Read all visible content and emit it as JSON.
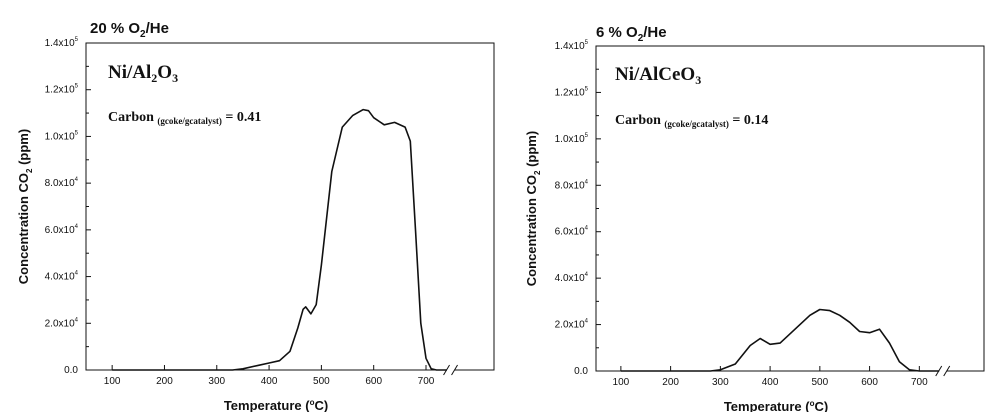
{
  "chart_data": [
    {
      "type": "line",
      "title": "20 % O2/He",
      "title_main": "20 % O",
      "title_sub": "2",
      "title_tail": "/He",
      "sample_main": "Ni/Al",
      "sample_sub1": "2",
      "sample_mid": "O",
      "sample_sub2": "3",
      "carbon_main": "Carbon",
      "carbon_unit": "(gcoke/gcatalyst)",
      "carbon_value": "= 0.41",
      "xlabel_main": "Temperature (",
      "xlabel_deg": "o",
      "xlabel_tail": "C)",
      "ylabel_main": "Concentration CO",
      "ylabel_sub": "2",
      "ylabel_tail": " (ppm)",
      "xlim": [
        50,
        830
      ],
      "ylim": [
        0,
        140000
      ],
      "x_ticks": [
        100,
        200,
        300,
        400,
        500,
        600,
        700
      ],
      "y_ticks": [
        {
          "v": 0,
          "text": "0.0",
          "exp": ""
        },
        {
          "v": 20000,
          "text": "2.0x10",
          "exp": "4"
        },
        {
          "v": 40000,
          "text": "4.0x10",
          "exp": "4"
        },
        {
          "v": 60000,
          "text": "6.0x10",
          "exp": "4"
        },
        {
          "v": 80000,
          "text": "8.0x10",
          "exp": "4"
        },
        {
          "v": 100000,
          "text": "1.0x10",
          "exp": "5"
        },
        {
          "v": 120000,
          "text": "1.2x10",
          "exp": "5"
        },
        {
          "v": 140000,
          "text": "1.4x10",
          "exp": "5"
        }
      ],
      "axis_break_x": 745,
      "x": [
        100,
        200,
        300,
        330,
        350,
        380,
        400,
        420,
        440,
        455,
        465,
        470,
        480,
        490,
        500,
        520,
        540,
        560,
        580,
        590,
        600,
        620,
        640,
        660,
        670,
        680,
        690,
        700,
        710,
        720,
        740
      ],
      "y": [
        0,
        0,
        0,
        0,
        500,
        2000,
        3000,
        4000,
        8000,
        18000,
        26000,
        27000,
        24000,
        28000,
        45000,
        85000,
        104000,
        109000,
        111500,
        111000,
        108000,
        105000,
        106000,
        104000,
        98000,
        60000,
        20000,
        5000,
        500,
        0,
        0
      ]
    },
    {
      "type": "line",
      "title": "6 % O2/He",
      "title_main": "6 % O",
      "title_sub": "2",
      "title_tail": "/He",
      "sample_main": "Ni/AlCeO",
      "sample_sub1": "3",
      "sample_mid": "",
      "sample_sub2": "",
      "carbon_main": "Carbon",
      "carbon_unit": "(gcoke/gcatalyst)",
      "carbon_value": "= 0.14",
      "xlabel_main": "Temperature (",
      "xlabel_deg": "o",
      "xlabel_tail": "C)",
      "ylabel_main": "Concentration CO",
      "ylabel_sub": "2",
      "ylabel_tail": " (ppm)",
      "xlim": [
        50,
        830
      ],
      "ylim": [
        0,
        140000
      ],
      "x_ticks": [
        100,
        200,
        300,
        400,
        500,
        600,
        700
      ],
      "y_ticks": [
        {
          "v": 0,
          "text": "0.0",
          "exp": ""
        },
        {
          "v": 20000,
          "text": "2.0x10",
          "exp": "4"
        },
        {
          "v": 40000,
          "text": "4.0x10",
          "exp": "4"
        },
        {
          "v": 60000,
          "text": "6.0x10",
          "exp": "4"
        },
        {
          "v": 80000,
          "text": "8.0x10",
          "exp": "4"
        },
        {
          "v": 100000,
          "text": "1.0x10",
          "exp": "5"
        },
        {
          "v": 120000,
          "text": "1.2x10",
          "exp": "5"
        },
        {
          "v": 140000,
          "text": "1.4x10",
          "exp": "5"
        }
      ],
      "axis_break_x": 745,
      "x": [
        100,
        200,
        280,
        300,
        330,
        360,
        380,
        400,
        420,
        450,
        480,
        500,
        520,
        540,
        560,
        580,
        600,
        620,
        640,
        660,
        680,
        700,
        720,
        740
      ],
      "y": [
        0,
        0,
        0,
        500,
        3000,
        11000,
        14000,
        11500,
        12000,
        18000,
        24000,
        26500,
        26000,
        24000,
        21000,
        17000,
        16500,
        18000,
        12000,
        4000,
        500,
        0,
        0,
        0
      ]
    }
  ]
}
